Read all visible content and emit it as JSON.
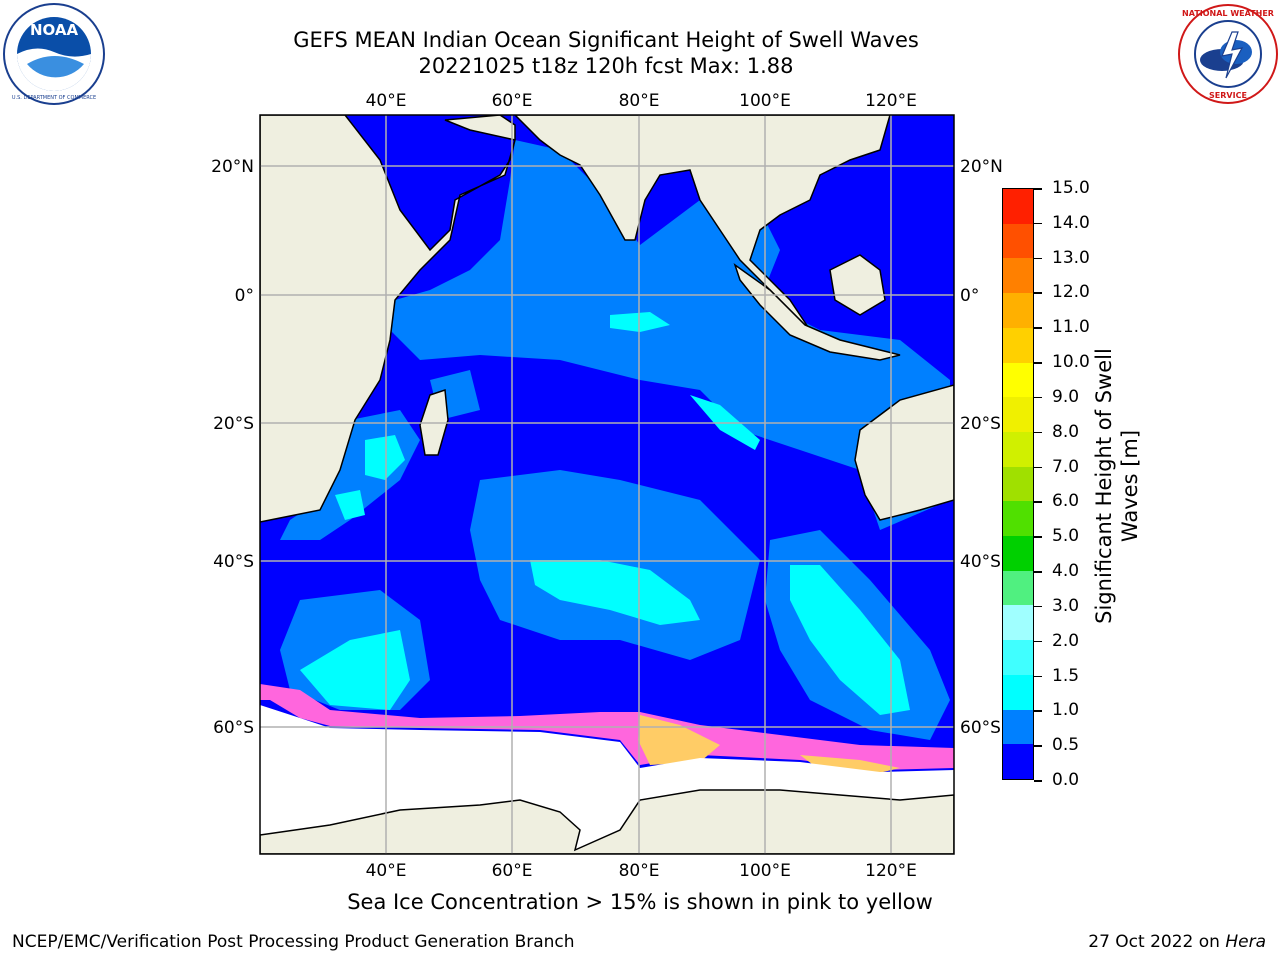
{
  "title_line1": "GEFS MEAN Indian Ocean Significant Height of Swell Waves",
  "title_line2": "20221025 t18z 120h fcst   Max: 1.88",
  "map": {
    "lon_ticks": [
      "40°E",
      "60°E",
      "80°E",
      "100°E",
      "120°E"
    ],
    "lat_ticks_left": [
      "20°N",
      "0°",
      "20°S",
      "40°S",
      "60°S"
    ],
    "lat_ticks_right": [
      "20°N",
      "0°",
      "20°S",
      "40°S",
      "60°S"
    ],
    "land_color": "#efefe0",
    "ocean_low_color": "#0000ff",
    "ocean_mid_color": "#0080ff",
    "ocean_high_color": "#00ffff",
    "ice_color": "#ff66dd"
  },
  "colorbar": {
    "title": "Significant Height of Swell Waves [m]",
    "labels": [
      "0.0",
      "0.5",
      "1.0",
      "1.5",
      "2.0",
      "3.0",
      "4.0",
      "5.0",
      "6.0",
      "7.0",
      "8.0",
      "9.0",
      "10.0",
      "11.0",
      "12.0",
      "13.0",
      "14.0",
      "15.0"
    ],
    "colors": [
      "#0000ff",
      "#0080ff",
      "#00ffff",
      "#40ffff",
      "#a0ffff",
      "#50f080",
      "#00d000",
      "#50e000",
      "#a0e000",
      "#d0f000",
      "#f0f000",
      "#ffff00",
      "#ffd000",
      "#ffb000",
      "#ff8000",
      "#ff5000",
      "#ff2000"
    ]
  },
  "footer_note": "Sea Ice Concentration > 15% is shown in pink to yellow",
  "credit_left": "NCEP/EMC/Verification Post Processing Product Generation Branch",
  "credit_right_prefix": "27 Oct 2022 on ",
  "credit_right_host": "Hera",
  "logos": {
    "left": "noaa-logo",
    "right": "nws-logo"
  }
}
